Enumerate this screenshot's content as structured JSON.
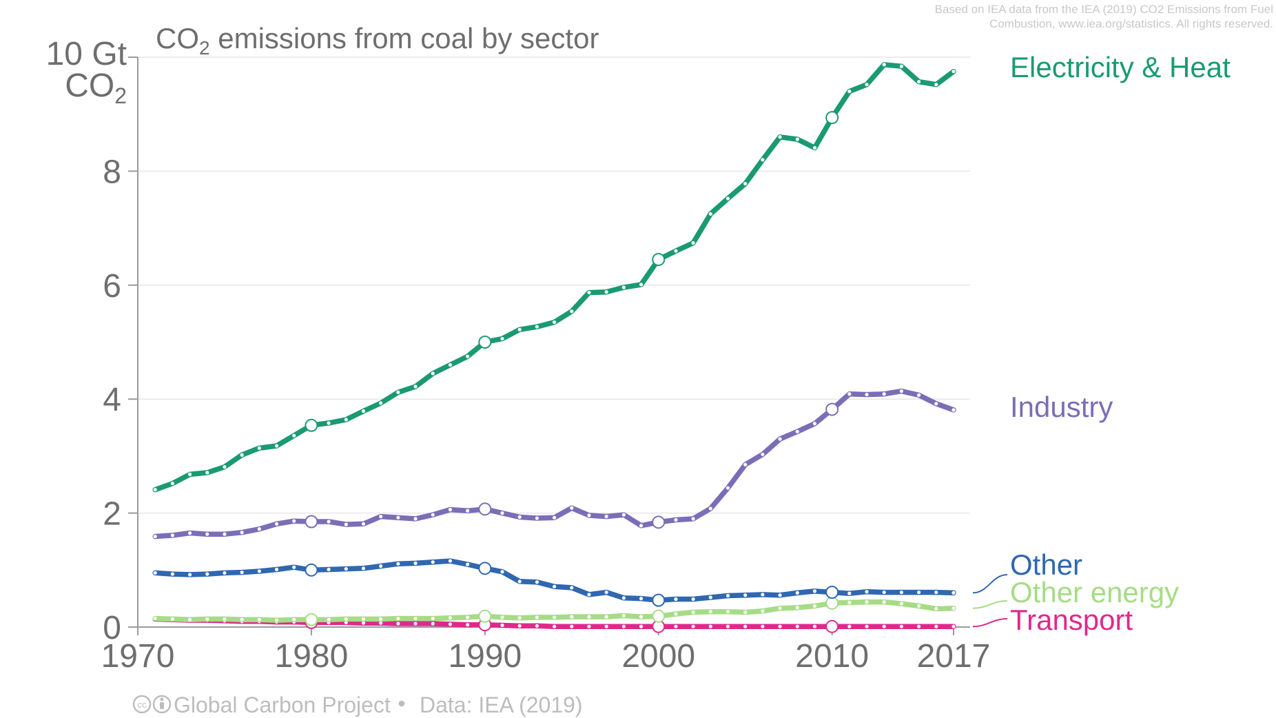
{
  "credit": {
    "line1": "Based on IEA data from the IEA (2019) CO2 Emissions from Fuel",
    "line2": "Combustion, www.iea.org/statistics. All rights reserved."
  },
  "footer": {
    "cc_badge": "cc",
    "attribution": "Global Carbon Project",
    "separator": "•",
    "data_source": "Data: IEA (2019)"
  },
  "chart_data": {
    "type": "line",
    "title_prefix": "CO",
    "title_sub": "2",
    "title_rest": " emissions from coal by sector",
    "unit_line1": "10 Gt",
    "unit_line2_prefix": "CO",
    "unit_line2_sub": "2",
    "xlim": [
      1970,
      2017
    ],
    "ylim": [
      0,
      10
    ],
    "x_ticks": [
      1970,
      1980,
      1990,
      2000,
      2010,
      2017
    ],
    "y_ticks": [
      0,
      2,
      4,
      6,
      8
    ],
    "grid": true,
    "x": [
      1971,
      1972,
      1973,
      1974,
      1975,
      1976,
      1977,
      1978,
      1979,
      1980,
      1981,
      1982,
      1983,
      1984,
      1985,
      1986,
      1987,
      1988,
      1989,
      1990,
      1991,
      1992,
      1993,
      1994,
      1995,
      1996,
      1997,
      1998,
      1999,
      2000,
      2001,
      2002,
      2003,
      2004,
      2005,
      2006,
      2007,
      2008,
      2009,
      2010,
      2011,
      2012,
      2013,
      2014,
      2015,
      2016,
      2017
    ],
    "series": [
      {
        "name": "Electricity & Heat",
        "color": "#1a9a72",
        "values": [
          2.41,
          2.52,
          2.68,
          2.71,
          2.81,
          3.02,
          3.14,
          3.18,
          3.36,
          3.54,
          3.58,
          3.64,
          3.79,
          3.93,
          4.12,
          4.22,
          4.45,
          4.6,
          4.75,
          5.0,
          5.06,
          5.22,
          5.27,
          5.35,
          5.54,
          5.87,
          5.88,
          5.96,
          6.01,
          6.45,
          6.6,
          6.74,
          7.25,
          7.52,
          7.78,
          8.2,
          8.6,
          8.56,
          8.41,
          8.94,
          9.4,
          9.52,
          9.87,
          9.84,
          9.57,
          9.52,
          9.75
        ]
      },
      {
        "name": "Industry",
        "color": "#7b6db7",
        "values": [
          1.59,
          1.61,
          1.65,
          1.63,
          1.63,
          1.66,
          1.72,
          1.81,
          1.86,
          1.85,
          1.85,
          1.8,
          1.81,
          1.94,
          1.92,
          1.9,
          1.97,
          2.06,
          2.04,
          2.07,
          2.0,
          1.93,
          1.91,
          1.92,
          2.09,
          1.96,
          1.94,
          1.97,
          1.78,
          1.84,
          1.88,
          1.9,
          2.08,
          2.44,
          2.85,
          3.03,
          3.3,
          3.43,
          3.57,
          3.82,
          4.09,
          4.08,
          4.09,
          4.14,
          4.07,
          3.92,
          3.81
        ]
      },
      {
        "name": "Other",
        "color": "#2f67b1",
        "values": [
          0.95,
          0.93,
          0.92,
          0.93,
          0.95,
          0.96,
          0.98,
          1.01,
          1.05,
          1.0,
          1.01,
          1.02,
          1.03,
          1.07,
          1.11,
          1.12,
          1.14,
          1.16,
          1.1,
          1.03,
          0.97,
          0.8,
          0.79,
          0.71,
          0.69,
          0.57,
          0.61,
          0.51,
          0.5,
          0.47,
          0.49,
          0.49,
          0.52,
          0.55,
          0.56,
          0.57,
          0.56,
          0.6,
          0.63,
          0.61,
          0.59,
          0.62,
          0.61,
          0.61,
          0.61,
          0.61,
          0.6
        ]
      },
      {
        "name": "Other energy",
        "color": "#a6dc85",
        "values": [
          0.15,
          0.14,
          0.13,
          0.14,
          0.14,
          0.13,
          0.13,
          0.12,
          0.13,
          0.13,
          0.13,
          0.14,
          0.14,
          0.14,
          0.15,
          0.15,
          0.15,
          0.16,
          0.17,
          0.19,
          0.17,
          0.16,
          0.17,
          0.17,
          0.18,
          0.18,
          0.18,
          0.2,
          0.18,
          0.19,
          0.23,
          0.26,
          0.27,
          0.27,
          0.26,
          0.28,
          0.33,
          0.34,
          0.37,
          0.42,
          0.43,
          0.44,
          0.44,
          0.41,
          0.37,
          0.32,
          0.33
        ]
      },
      {
        "name": "Transport",
        "color": "#e0288c",
        "values": [
          0.14,
          0.13,
          0.12,
          0.12,
          0.11,
          0.1,
          0.1,
          0.09,
          0.09,
          0.08,
          0.08,
          0.08,
          0.07,
          0.07,
          0.06,
          0.06,
          0.06,
          0.05,
          0.04,
          0.04,
          0.03,
          0.02,
          0.02,
          0.01,
          0.01,
          0.01,
          0.01,
          0.01,
          0.01,
          0.01,
          0.01,
          0.01,
          0.01,
          0.01,
          0.01,
          0.01,
          0.01,
          0.01,
          0.01,
          0.01,
          0.01,
          0.01,
          0.01,
          0.01,
          0.01,
          0.01,
          0.01
        ]
      }
    ],
    "highlighted_years": [
      1980,
      1990,
      2000,
      2010
    ]
  }
}
